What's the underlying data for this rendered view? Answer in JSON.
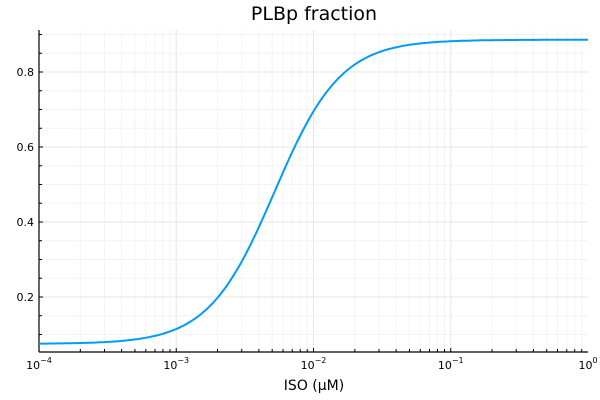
{
  "chart_data": {
    "type": "line",
    "title": "PLBp fraction",
    "xlabel": "ISO (μM)",
    "ylabel": "",
    "xscale": "log",
    "xlim": [
      0.0001,
      1
    ],
    "ylim": [
      0.056,
      0.913
    ],
    "grid": true,
    "legend": "none",
    "xticks": [
      "10^-4",
      "10^-3",
      "10^-2",
      "10^-1",
      "10^0"
    ],
    "yticks": [
      "0.2",
      "0.4",
      "0.6",
      "0.8"
    ],
    "series": [
      {
        "name": "PLBp fraction",
        "color": "#009af9",
        "x": [
          0.0001,
          0.0003,
          0.001,
          0.002,
          0.003,
          0.005,
          0.007,
          0.01,
          0.02,
          0.05,
          0.1,
          0.3,
          1
        ],
        "y": [
          0.077,
          0.085,
          0.115,
          0.18,
          0.26,
          0.46,
          0.6,
          0.71,
          0.81,
          0.86,
          0.875,
          0.883,
          0.886
        ]
      }
    ]
  }
}
